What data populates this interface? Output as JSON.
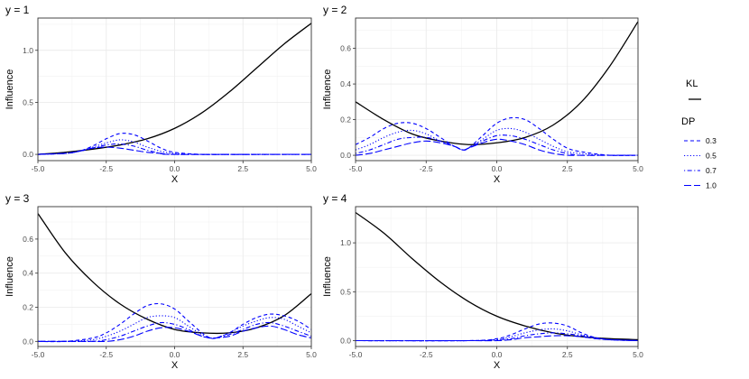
{
  "chart_data": [
    {
      "type": "line",
      "title": "y = 1",
      "xlabel": "X",
      "ylabel": "Influence",
      "xlim": [
        -5,
        5
      ],
      "ylim": [
        -0.06,
        1.31
      ],
      "xticks": [
        -5.0,
        -2.5,
        0.0,
        2.5,
        5.0
      ],
      "xtick_labels": [
        "-5.0",
        "-2.5",
        "0.0",
        "2.5",
        "5.0"
      ],
      "yticks": [
        0.0,
        0.5,
        1.0
      ],
      "ytick_labels": [
        "0.0",
        "0.5",
        "1.0"
      ],
      "grid": true,
      "series": [
        {
          "name": "KL",
          "group": "KL",
          "color": "#000000",
          "dash": "solid",
          "x": [
            -5,
            -4,
            -3,
            -2,
            -1,
            0,
            1,
            2,
            3,
            4,
            5
          ],
          "values": [
            0.0,
            0.02,
            0.05,
            0.09,
            0.15,
            0.25,
            0.4,
            0.6,
            0.83,
            1.06,
            1.26
          ]
        },
        {
          "name": "0.3",
          "group": "DP",
          "color": "#0000ff",
          "dash": "dashed",
          "x": [
            -5,
            -4,
            -3.5,
            -3,
            -2.5,
            -2,
            -1.5,
            -1,
            -0.5,
            0,
            1,
            2,
            5
          ],
          "values": [
            0.0,
            0.01,
            0.03,
            0.08,
            0.15,
            0.2,
            0.19,
            0.13,
            0.06,
            0.02,
            0.0,
            0.0,
            0.0
          ]
        },
        {
          "name": "0.5",
          "group": "DP",
          "color": "#0000ff",
          "dash": "dotted",
          "x": [
            -5,
            -4,
            -3.5,
            -3,
            -2.5,
            -2,
            -1.5,
            -1,
            -0.5,
            0,
            1,
            5
          ],
          "values": [
            0.0,
            0.01,
            0.03,
            0.07,
            0.11,
            0.14,
            0.12,
            0.07,
            0.03,
            0.01,
            0.0,
            0.0
          ]
        },
        {
          "name": "0.7",
          "group": "DP",
          "color": "#0000ff",
          "dash": "dotdash",
          "x": [
            -5,
            -4,
            -3.5,
            -3,
            -2.5,
            -2,
            -1.5,
            -1,
            -0.5,
            0,
            1,
            5
          ],
          "values": [
            0.0,
            0.01,
            0.03,
            0.06,
            0.09,
            0.1,
            0.08,
            0.04,
            0.01,
            0.0,
            0.0,
            0.0
          ]
        },
        {
          "name": "1.0",
          "group": "DP",
          "color": "#0000ff",
          "dash": "longdash",
          "x": [
            -5,
            -4,
            -3.5,
            -3,
            -2.5,
            -2,
            -1.5,
            -1,
            -0.5,
            0,
            5
          ],
          "values": [
            0.0,
            0.01,
            0.03,
            0.06,
            0.07,
            0.06,
            0.04,
            0.02,
            0.01,
            0.0,
            0.0
          ]
        }
      ]
    },
    {
      "type": "line",
      "title": "y = 2",
      "xlabel": "X",
      "ylabel": "Influence",
      "xlim": [
        -5,
        5
      ],
      "ylim": [
        -0.03,
        0.77
      ],
      "xticks": [
        -5.0,
        -2.5,
        0.0,
        2.5,
        5.0
      ],
      "xtick_labels": [
        "-5.0",
        "-2.5",
        "0.0",
        "2.5",
        "5.0"
      ],
      "yticks": [
        0.0,
        0.2,
        0.4,
        0.6
      ],
      "ytick_labels": [
        "0.0",
        "0.2",
        "0.4",
        "0.6"
      ],
      "grid": true,
      "series": [
        {
          "name": "KL",
          "group": "KL",
          "color": "#000000",
          "dash": "solid",
          "x": [
            -5,
            -4,
            -3,
            -2,
            -1,
            0,
            1,
            2,
            3,
            4,
            5
          ],
          "values": [
            0.3,
            0.2,
            0.12,
            0.08,
            0.06,
            0.07,
            0.1,
            0.17,
            0.3,
            0.5,
            0.75
          ]
        },
        {
          "name": "0.3",
          "group": "DP",
          "color": "#0000ff",
          "dash": "dashed",
          "x": [
            -5,
            -4.5,
            -4,
            -3.5,
            -3,
            -2.5,
            -2,
            -1.5,
            -1.2,
            -1,
            -0.5,
            0,
            0.5,
            1,
            1.5,
            2,
            2.5,
            3,
            4,
            5
          ],
          "values": [
            0.06,
            0.1,
            0.15,
            0.18,
            0.18,
            0.15,
            0.1,
            0.05,
            0.03,
            0.04,
            0.11,
            0.18,
            0.21,
            0.2,
            0.15,
            0.09,
            0.04,
            0.02,
            0.0,
            0.0
          ]
        },
        {
          "name": "0.5",
          "group": "DP",
          "color": "#0000ff",
          "dash": "dotted",
          "x": [
            -5,
            -4.5,
            -4,
            -3.5,
            -3,
            -2.5,
            -2,
            -1.5,
            -1.2,
            -1,
            -0.5,
            0,
            0.5,
            1,
            1.5,
            2,
            2.5,
            3,
            4,
            5
          ],
          "values": [
            0.03,
            0.06,
            0.1,
            0.13,
            0.14,
            0.12,
            0.08,
            0.05,
            0.03,
            0.04,
            0.09,
            0.14,
            0.15,
            0.13,
            0.09,
            0.05,
            0.02,
            0.01,
            0.0,
            0.0
          ]
        },
        {
          "name": "0.7",
          "group": "DP",
          "color": "#0000ff",
          "dash": "dotdash",
          "x": [
            -5,
            -4.5,
            -4,
            -3.5,
            -3,
            -2.5,
            -2,
            -1.5,
            -1.2,
            -1,
            -0.5,
            0,
            0.5,
            1,
            1.5,
            2,
            2.5,
            3,
            4,
            5
          ],
          "values": [
            0.01,
            0.03,
            0.06,
            0.09,
            0.1,
            0.1,
            0.08,
            0.05,
            0.03,
            0.04,
            0.08,
            0.11,
            0.11,
            0.09,
            0.06,
            0.03,
            0.01,
            0.0,
            0.0,
            0.0
          ]
        },
        {
          "name": "1.0",
          "group": "DP",
          "color": "#0000ff",
          "dash": "longdash",
          "x": [
            -5,
            -4.5,
            -4,
            -3.5,
            -3,
            -2.5,
            -2,
            -1.5,
            -1.2,
            -1,
            -0.5,
            0,
            0.5,
            1,
            1.5,
            2,
            2.5,
            3,
            4,
            5
          ],
          "values": [
            0.0,
            0.01,
            0.03,
            0.05,
            0.07,
            0.08,
            0.07,
            0.05,
            0.03,
            0.04,
            0.07,
            0.09,
            0.08,
            0.06,
            0.03,
            0.01,
            0.0,
            0.0,
            0.0,
            0.0
          ]
        }
      ]
    },
    {
      "type": "line",
      "title": "y = 3",
      "xlabel": "X",
      "ylabel": "Influence",
      "xlim": [
        -5,
        5
      ],
      "ylim": [
        -0.03,
        0.79
      ],
      "xticks": [
        -5.0,
        -2.5,
        0.0,
        2.5,
        5.0
      ],
      "xtick_labels": [
        "-5.0",
        "-2.5",
        "0.0",
        "2.5",
        "5.0"
      ],
      "yticks": [
        0.0,
        0.2,
        0.4,
        0.6
      ],
      "ytick_labels": [
        "0.0",
        "0.2",
        "0.4",
        "0.6"
      ],
      "grid": true,
      "series": [
        {
          "name": "KL",
          "group": "KL",
          "color": "#000000",
          "dash": "solid",
          "x": [
            -5,
            -4,
            -3,
            -2,
            -1,
            0,
            1,
            2,
            3,
            4,
            5
          ],
          "values": [
            0.75,
            0.52,
            0.35,
            0.22,
            0.13,
            0.07,
            0.05,
            0.05,
            0.08,
            0.15,
            0.28
          ]
        },
        {
          "name": "0.3",
          "group": "DP",
          "color": "#0000ff",
          "dash": "dashed",
          "x": [
            -5,
            -4,
            -3,
            -2.5,
            -2,
            -1.5,
            -1,
            -0.5,
            0,
            0.5,
            1,
            1.3,
            1.5,
            2,
            2.5,
            3,
            3.5,
            4,
            4.5,
            5
          ],
          "values": [
            0.0,
            0.0,
            0.02,
            0.05,
            0.1,
            0.16,
            0.21,
            0.22,
            0.19,
            0.12,
            0.05,
            0.02,
            0.02,
            0.05,
            0.1,
            0.14,
            0.16,
            0.15,
            0.12,
            0.07
          ]
        },
        {
          "name": "0.5",
          "group": "DP",
          "color": "#0000ff",
          "dash": "dotted",
          "x": [
            -5,
            -4,
            -3,
            -2.5,
            -2,
            -1.5,
            -1,
            -0.5,
            0,
            0.5,
            1,
            1.3,
            1.5,
            2,
            2.5,
            3,
            3.5,
            4,
            4.5,
            5
          ],
          "values": [
            0.0,
            0.0,
            0.01,
            0.03,
            0.06,
            0.1,
            0.14,
            0.15,
            0.14,
            0.09,
            0.04,
            0.02,
            0.02,
            0.05,
            0.09,
            0.12,
            0.14,
            0.13,
            0.09,
            0.05
          ]
        },
        {
          "name": "0.7",
          "group": "DP",
          "color": "#0000ff",
          "dash": "dotdash",
          "x": [
            -5,
            -4,
            -3,
            -2.5,
            -2,
            -1.5,
            -1,
            -0.5,
            0,
            0.5,
            1,
            1.3,
            1.5,
            2,
            2.5,
            3,
            3.5,
            4,
            4.5,
            5
          ],
          "values": [
            0.0,
            0.0,
            0.0,
            0.01,
            0.03,
            0.06,
            0.09,
            0.11,
            0.1,
            0.07,
            0.03,
            0.02,
            0.02,
            0.04,
            0.07,
            0.1,
            0.11,
            0.09,
            0.06,
            0.03
          ]
        },
        {
          "name": "1.0",
          "group": "DP",
          "color": "#0000ff",
          "dash": "longdash",
          "x": [
            -5,
            -4,
            -3,
            -2.5,
            -2,
            -1.5,
            -1,
            -0.5,
            0,
            0.5,
            1,
            1.3,
            1.5,
            2,
            2.5,
            3,
            3.5,
            4,
            4.5,
            5
          ],
          "values": [
            0.0,
            0.0,
            0.0,
            0.0,
            0.01,
            0.03,
            0.06,
            0.08,
            0.08,
            0.06,
            0.03,
            0.02,
            0.02,
            0.03,
            0.06,
            0.08,
            0.09,
            0.07,
            0.04,
            0.02
          ]
        }
      ]
    },
    {
      "type": "line",
      "title": "y = 4",
      "xlabel": "X",
      "ylabel": "Influence",
      "xlim": [
        -5,
        5
      ],
      "ylim": [
        -0.06,
        1.37
      ],
      "xticks": [
        -5.0,
        -2.5,
        0.0,
        2.5,
        5.0
      ],
      "xtick_labels": [
        "-5.0",
        "-2.5",
        "0.0",
        "2.5",
        "5.0"
      ],
      "yticks": [
        0.0,
        0.5,
        1.0
      ],
      "ytick_labels": [
        "0.0",
        "0.5",
        "1.0"
      ],
      "grid": true,
      "series": [
        {
          "name": "KL",
          "group": "KL",
          "color": "#000000",
          "dash": "solid",
          "x": [
            -5,
            -4,
            -3,
            -2,
            -1,
            0,
            1,
            2,
            3,
            4,
            5
          ],
          "values": [
            1.31,
            1.1,
            0.84,
            0.6,
            0.4,
            0.25,
            0.15,
            0.08,
            0.04,
            0.02,
            0.01
          ]
        },
        {
          "name": "0.3",
          "group": "DP",
          "color": "#0000ff",
          "dash": "dashed",
          "x": [
            -5,
            -1,
            0,
            0.5,
            1,
            1.5,
            2,
            2.5,
            3,
            3.5,
            4,
            5
          ],
          "values": [
            0.0,
            0.0,
            0.02,
            0.06,
            0.12,
            0.17,
            0.18,
            0.15,
            0.08,
            0.03,
            0.01,
            0.0
          ]
        },
        {
          "name": "0.5",
          "group": "DP",
          "color": "#0000ff",
          "dash": "dotted",
          "x": [
            -5,
            -1,
            0,
            0.5,
            1,
            1.5,
            2,
            2.5,
            3,
            3.5,
            4,
            5
          ],
          "values": [
            0.0,
            0.0,
            0.01,
            0.04,
            0.08,
            0.11,
            0.12,
            0.1,
            0.06,
            0.03,
            0.01,
            0.0
          ]
        },
        {
          "name": "0.7",
          "group": "DP",
          "color": "#0000ff",
          "dash": "dotdash",
          "x": [
            -5,
            -1,
            0,
            0.5,
            1,
            1.5,
            2,
            2.5,
            3,
            3.5,
            4,
            5
          ],
          "values": [
            0.0,
            0.0,
            0.01,
            0.02,
            0.05,
            0.07,
            0.08,
            0.07,
            0.05,
            0.03,
            0.01,
            0.0
          ]
        },
        {
          "name": "1.0",
          "group": "DP",
          "color": "#0000ff",
          "dash": "longdash",
          "x": [
            -5,
            -1,
            0,
            0.5,
            1,
            1.5,
            2,
            2.5,
            3,
            3.5,
            4,
            5
          ],
          "values": [
            0.0,
            0.0,
            0.0,
            0.01,
            0.03,
            0.04,
            0.05,
            0.05,
            0.04,
            0.02,
            0.01,
            0.0
          ]
        }
      ]
    }
  ],
  "legend": {
    "placement": "right",
    "groups": [
      {
        "title": "KL",
        "items": [
          {
            "label": "",
            "color": "#000000",
            "dash": "solid"
          }
        ]
      },
      {
        "title": "DP",
        "items": [
          {
            "label": "0.3",
            "color": "#0000ff",
            "dash": "dashed"
          },
          {
            "label": "0.5",
            "color": "#0000ff",
            "dash": "dotted"
          },
          {
            "label": "0.7",
            "color": "#0000ff",
            "dash": "dotdash"
          },
          {
            "label": "1.0",
            "color": "#0000ff",
            "dash": "longdash"
          }
        ]
      }
    ]
  }
}
